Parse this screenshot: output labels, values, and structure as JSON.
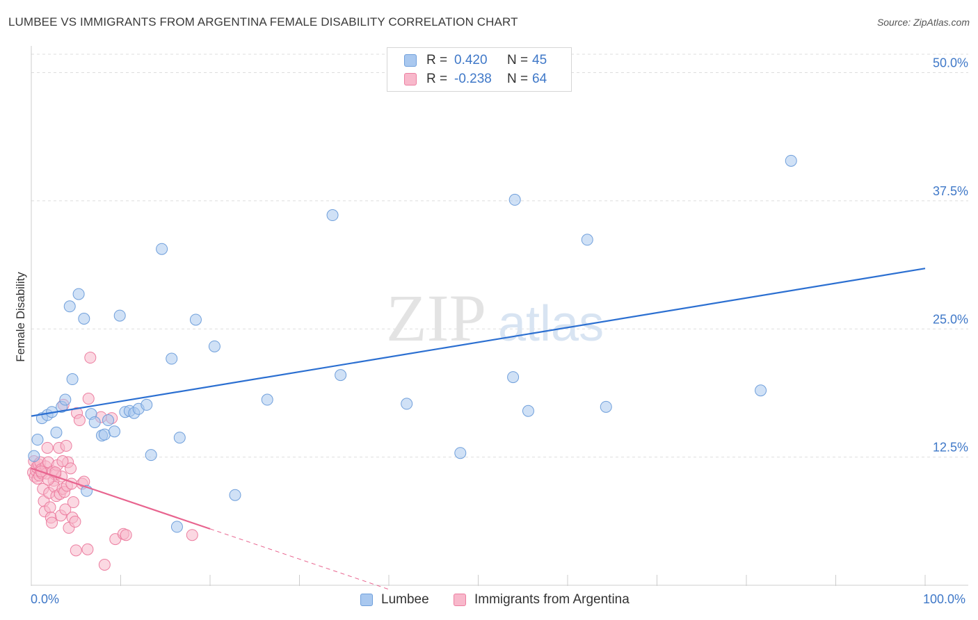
{
  "title": "LUMBEE VS IMMIGRANTS FROM ARGENTINA FEMALE DISABILITY CORRELATION CHART",
  "source": "Source: ZipAtlas.com",
  "watermark": {
    "zip": "ZIP",
    "atlas": "atlas"
  },
  "legend": [
    {
      "r_label": "R =",
      "r_value": "0.420",
      "n_label": "N =",
      "n_value": "45"
    },
    {
      "r_label": "R =",
      "r_value": "-0.238",
      "n_label": "N =",
      "n_value": "64"
    }
  ],
  "bottom_legend": [
    "Lumbee",
    "Immigrants from Argentina"
  ],
  "x_axis_labels": {
    "left": "0.0%",
    "right": "100.0%"
  },
  "colors": {
    "blue_fill": "#a9c8ef",
    "blue_stroke": "#6f9fdb",
    "blue_line": "#2b6fd1",
    "pink_fill": "#f8b8cb",
    "pink_stroke": "#ec7ea0",
    "pink_line": "#e8648f",
    "tick_text": "#3f78c8",
    "grid": "#dddddd"
  },
  "chart_data": {
    "type": "scatter",
    "title": "LUMBEE VS IMMIGRANTS FROM ARGENTINA FEMALE DISABILITY CORRELATION CHART",
    "xlabel": "",
    "ylabel": "Female Disability",
    "xlim": [
      0,
      100
    ],
    "ylim": [
      0,
      52
    ],
    "y_ticks": [
      {
        "value": 12.5,
        "label": "12.5%"
      },
      {
        "value": 25.0,
        "label": "25.0%"
      },
      {
        "value": 37.5,
        "label": "37.5%"
      },
      {
        "value": 50.0,
        "label": "50.0%"
      }
    ],
    "series": [
      {
        "name": "Lumbee",
        "color": "blue",
        "points": [
          [
            0.3,
            12.6
          ],
          [
            0.7,
            14.2
          ],
          [
            1.2,
            16.3
          ],
          [
            1.8,
            16.6
          ],
          [
            2.3,
            16.9
          ],
          [
            2.8,
            14.9
          ],
          [
            3.4,
            17.4
          ],
          [
            3.8,
            18.1
          ],
          [
            4.3,
            27.2
          ],
          [
            4.6,
            20.1
          ],
          [
            5.3,
            28.4
          ],
          [
            5.9,
            26.0
          ],
          [
            6.2,
            9.2
          ],
          [
            6.7,
            16.7
          ],
          [
            7.1,
            15.9
          ],
          [
            7.9,
            14.6
          ],
          [
            8.2,
            14.7
          ],
          [
            8.6,
            16.1
          ],
          [
            9.3,
            15.0
          ],
          [
            9.9,
            26.3
          ],
          [
            10.5,
            16.9
          ],
          [
            11.0,
            17.0
          ],
          [
            11.5,
            16.8
          ],
          [
            12.0,
            17.2
          ],
          [
            12.9,
            17.6
          ],
          [
            13.4,
            12.7
          ],
          [
            14.6,
            32.8
          ],
          [
            15.7,
            22.1
          ],
          [
            16.6,
            14.4
          ],
          [
            16.3,
            5.7
          ],
          [
            18.4,
            25.9
          ],
          [
            20.5,
            23.3
          ],
          [
            22.8,
            8.8
          ],
          [
            26.4,
            18.1
          ],
          [
            33.7,
            36.1
          ],
          [
            34.6,
            20.5
          ],
          [
            42.0,
            17.7
          ],
          [
            48.0,
            12.9
          ],
          [
            53.9,
            20.3
          ],
          [
            54.1,
            37.6
          ],
          [
            55.6,
            17.0
          ],
          [
            62.2,
            33.7
          ],
          [
            64.3,
            17.4
          ],
          [
            81.6,
            19.0
          ],
          [
            85.0,
            41.4
          ]
        ]
      },
      {
        "name": "Immigrants from Argentina",
        "color": "pink",
        "points": [
          [
            0.2,
            11.0
          ],
          [
            0.3,
            12.1
          ],
          [
            0.4,
            10.6
          ],
          [
            0.5,
            11.2
          ],
          [
            0.6,
            11.5
          ],
          [
            0.7,
            10.4
          ],
          [
            0.8,
            11.8
          ],
          [
            0.9,
            10.7
          ],
          [
            1.0,
            12.0
          ],
          [
            1.1,
            11.3
          ],
          [
            1.2,
            10.9
          ],
          [
            1.3,
            9.4
          ],
          [
            1.4,
            8.2
          ],
          [
            1.5,
            7.2
          ],
          [
            1.6,
            11.6
          ],
          [
            1.7,
            10.9
          ],
          [
            1.8,
            13.4
          ],
          [
            1.9,
            12.0
          ],
          [
            2.0,
            9.0
          ],
          [
            2.1,
            7.6
          ],
          [
            2.2,
            6.6
          ],
          [
            2.3,
            6.1
          ],
          [
            2.4,
            11.1
          ],
          [
            2.5,
            10.2
          ],
          [
            2.6,
            9.6
          ],
          [
            2.7,
            10.8
          ],
          [
            2.8,
            8.7
          ],
          [
            2.9,
            11.7
          ],
          [
            3.1,
            13.4
          ],
          [
            3.2,
            8.9
          ],
          [
            3.3,
            6.8
          ],
          [
            3.4,
            10.6
          ],
          [
            3.5,
            9.4
          ],
          [
            3.6,
            17.6
          ],
          [
            3.7,
            9.1
          ],
          [
            3.8,
            7.4
          ],
          [
            3.9,
            13.6
          ],
          [
            4.0,
            9.7
          ],
          [
            4.1,
            12.0
          ],
          [
            4.2,
            5.6
          ],
          [
            4.4,
            11.4
          ],
          [
            4.5,
            9.9
          ],
          [
            4.6,
            6.6
          ],
          [
            4.7,
            8.1
          ],
          [
            4.9,
            6.2
          ],
          [
            5.0,
            3.4
          ],
          [
            5.1,
            16.8
          ],
          [
            5.4,
            16.1
          ],
          [
            5.7,
            9.9
          ],
          [
            5.9,
            10.1
          ],
          [
            6.3,
            3.5
          ],
          [
            6.4,
            18.2
          ],
          [
            6.6,
            22.2
          ],
          [
            7.8,
            16.4
          ],
          [
            8.2,
            2.0
          ],
          [
            9.0,
            16.3
          ],
          [
            9.4,
            4.5
          ],
          [
            10.3,
            5.0
          ],
          [
            10.6,
            4.9
          ],
          [
            18.0,
            4.9
          ],
          [
            1.1,
            11.1
          ],
          [
            1.9,
            10.3
          ],
          [
            2.7,
            11.0
          ],
          [
            3.5,
            12.1
          ]
        ]
      }
    ],
    "trend_lines": [
      {
        "series": "Lumbee",
        "x": [
          0,
          100
        ],
        "y": [
          16.5,
          30.9
        ],
        "style": "solid"
      },
      {
        "series": "Immigrants from Argentina",
        "x": [
          0,
          20
        ],
        "y": [
          11.4,
          5.5
        ],
        "style": "solid"
      },
      {
        "series": "Immigrants from Argentina",
        "x": [
          20,
          40
        ],
        "y": [
          5.5,
          -0.4
        ],
        "style": "dashed"
      }
    ],
    "legend_position": "top-center"
  }
}
